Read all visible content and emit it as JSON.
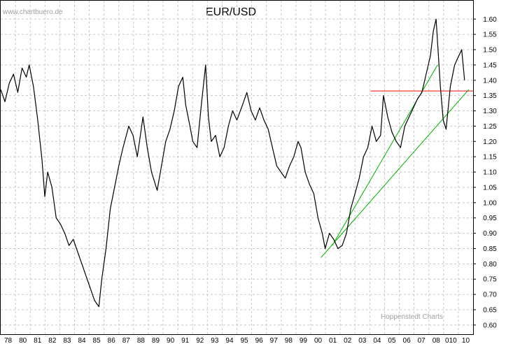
{
  "chart_data": {
    "type": "line",
    "title": "EUR/USD",
    "watermark": "www.chartbuero.de",
    "source_label": "Hoppenstedt Charts",
    "x_tick_labels": [
      "78",
      "80",
      "81",
      "82",
      "83",
      "84",
      "85",
      "86",
      "87",
      "88",
      "89",
      "90",
      "91",
      "92",
      "93",
      "94",
      "95",
      "96",
      "97",
      "98",
      "99",
      "00",
      "01",
      "02",
      "03",
      "04",
      "05",
      "06",
      "07",
      "08",
      "010",
      "10"
    ],
    "y_ticks": [
      0.6,
      0.65,
      0.7,
      0.75,
      0.8,
      0.85,
      0.9,
      0.95,
      1.0,
      1.05,
      1.1,
      1.15,
      1.2,
      1.25,
      1.3,
      1.35,
      1.4,
      1.45,
      1.5,
      1.55,
      1.6
    ],
    "ylim": [
      0.57,
      1.66
    ],
    "xlim": [
      1978.0,
      2011.2
    ],
    "grid": true,
    "series": [
      {
        "color": "#000000",
        "x": [
          1978.0,
          1978.3,
          1978.6,
          1978.9,
          1979.2,
          1979.5,
          1979.8,
          1980.0,
          1980.3,
          1980.6,
          1980.9,
          1981.1,
          1981.3,
          1981.6,
          1981.9,
          1982.2,
          1982.5,
          1982.8,
          1983.1,
          1983.4,
          1983.7,
          1984.0,
          1984.3,
          1984.6,
          1984.9,
          1985.1,
          1985.4,
          1985.7,
          1986.0,
          1986.3,
          1986.6,
          1987.0,
          1987.3,
          1987.6,
          1988.0,
          1988.3,
          1988.6,
          1989.0,
          1989.3,
          1989.6,
          1989.9,
          1990.2,
          1990.5,
          1990.8,
          1991.0,
          1991.3,
          1991.5,
          1991.8,
          1992.1,
          1992.4,
          1992.6,
          1992.8,
          1993.1,
          1993.4,
          1993.7,
          1994.0,
          1994.3,
          1994.6,
          1995.0,
          1995.3,
          1995.6,
          1995.9,
          1996.2,
          1996.5,
          1996.8,
          1997.1,
          1997.4,
          1997.7,
          1998.0,
          1998.3,
          1998.6,
          1998.9,
          1999.1,
          1999.4,
          1999.7,
          2000.0,
          2000.3,
          2000.6,
          2000.8,
          2001.1,
          2001.4,
          2001.7,
          2002.0,
          2002.3,
          2002.6,
          2002.9,
          2003.2,
          2003.5,
          2003.8,
          2004.1,
          2004.4,
          2004.7,
          2004.9,
          2005.2,
          2005.5,
          2005.8,
          2006.1,
          2006.4,
          2006.7,
          2007.0,
          2007.3,
          2007.6,
          2007.9,
          2008.2,
          2008.4,
          2008.6,
          2008.9,
          2009.1,
          2009.3,
          2009.6,
          2009.9,
          2010.1,
          2010.4,
          2010.6
        ],
        "values": [
          1.37,
          1.33,
          1.39,
          1.42,
          1.36,
          1.44,
          1.41,
          1.45,
          1.38,
          1.27,
          1.14,
          1.02,
          1.1,
          1.05,
          0.95,
          0.93,
          0.9,
          0.86,
          0.88,
          0.84,
          0.8,
          0.76,
          0.72,
          0.68,
          0.66,
          0.75,
          0.85,
          0.98,
          1.05,
          1.12,
          1.18,
          1.25,
          1.22,
          1.15,
          1.28,
          1.18,
          1.1,
          1.04,
          1.12,
          1.2,
          1.24,
          1.3,
          1.38,
          1.41,
          1.32,
          1.25,
          1.2,
          1.18,
          1.32,
          1.45,
          1.28,
          1.2,
          1.22,
          1.15,
          1.18,
          1.25,
          1.3,
          1.27,
          1.32,
          1.36,
          1.3,
          1.27,
          1.31,
          1.27,
          1.24,
          1.18,
          1.12,
          1.1,
          1.08,
          1.12,
          1.15,
          1.2,
          1.18,
          1.1,
          1.06,
          1.03,
          0.95,
          0.9,
          0.85,
          0.9,
          0.88,
          0.85,
          0.86,
          0.9,
          0.98,
          1.03,
          1.08,
          1.15,
          1.18,
          1.25,
          1.2,
          1.22,
          1.35,
          1.28,
          1.23,
          1.2,
          1.18,
          1.25,
          1.28,
          1.31,
          1.34,
          1.36,
          1.42,
          1.48,
          1.56,
          1.6,
          1.38,
          1.27,
          1.24,
          1.38,
          1.45,
          1.47,
          1.5,
          1.4
        ]
      }
    ],
    "annotations": [
      {
        "type": "hline",
        "color": "#ff0000",
        "y": 1.365,
        "x_from": 2004.0,
        "x_to": 2011.2
      },
      {
        "type": "trendline",
        "color": "#00b000",
        "from": [
          2000.5,
          0.82
        ],
        "to": [
          2010.9,
          1.37
        ]
      },
      {
        "type": "trendline",
        "color": "#00b000",
        "from": [
          2001.3,
          0.86
        ],
        "to": [
          2008.7,
          1.45
        ]
      }
    ]
  }
}
